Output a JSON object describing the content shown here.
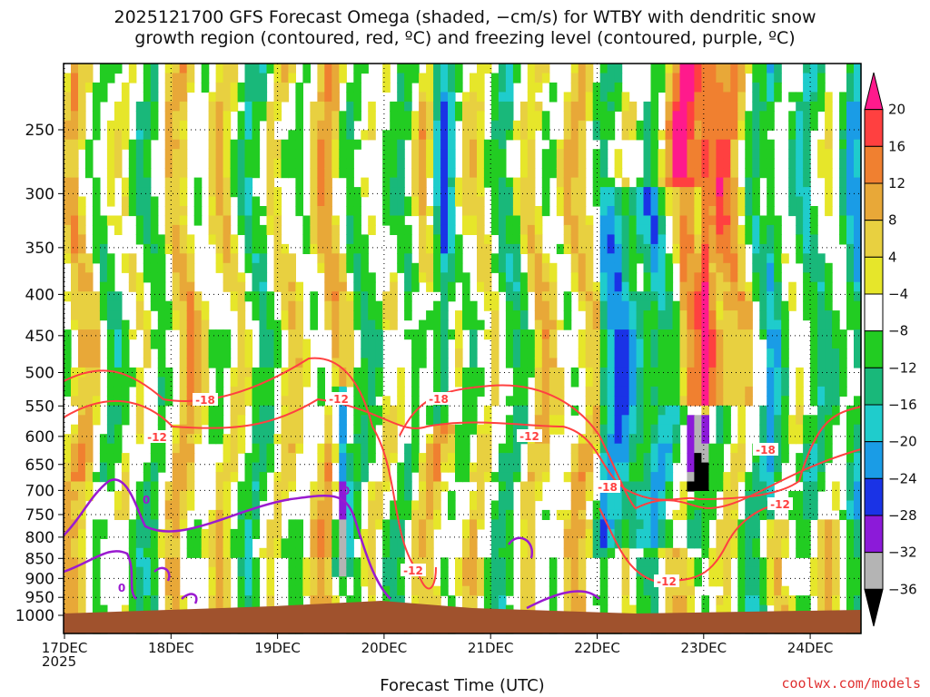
{
  "title": {
    "line1": "2025121700 GFS Forecast Omega (shaded, −cm/s) for WTBY with dendritic snow",
    "line2": "growth region (contoured, red, ºC) and freezing level (contoured, purple, ºC)"
  },
  "credit": "coolwx.com/models",
  "chart_data": {
    "type": "heatmap",
    "xlabel": "Forecast Time (UTC)",
    "x_year": "2025",
    "x_ticks": [
      "17DEC",
      "18DEC",
      "19DEC",
      "20DEC",
      "21DEC",
      "22DEC",
      "23DEC",
      "24DEC"
    ],
    "y_ticks": [
      250,
      300,
      350,
      400,
      450,
      500,
      550,
      600,
      650,
      700,
      750,
      800,
      850,
      900,
      950,
      1000
    ],
    "colorbar": {
      "ticks": [
        "20",
        "16",
        "12",
        "8",
        "4",
        "−4",
        "−8",
        "−12",
        "−16",
        "−20",
        "−24",
        "−28",
        "−32",
        "−36"
      ],
      "colors": [
        "#ff1a8c",
        "#ff4040",
        "#f08030",
        "#e8a838",
        "#e8d040",
        "#e6e62a",
        "#ffffff",
        "#22cc22",
        "#19b87a",
        "#1fcccc",
        "#1a9ce6",
        "#1a33e6",
        "#8c1ad9",
        "#b4b4b4",
        "#000000"
      ]
    },
    "contour_labels": {
      "red": [
        "-12",
        "-18"
      ],
      "purple": [
        "0"
      ]
    },
    "ground_color": "#a0522d"
  }
}
